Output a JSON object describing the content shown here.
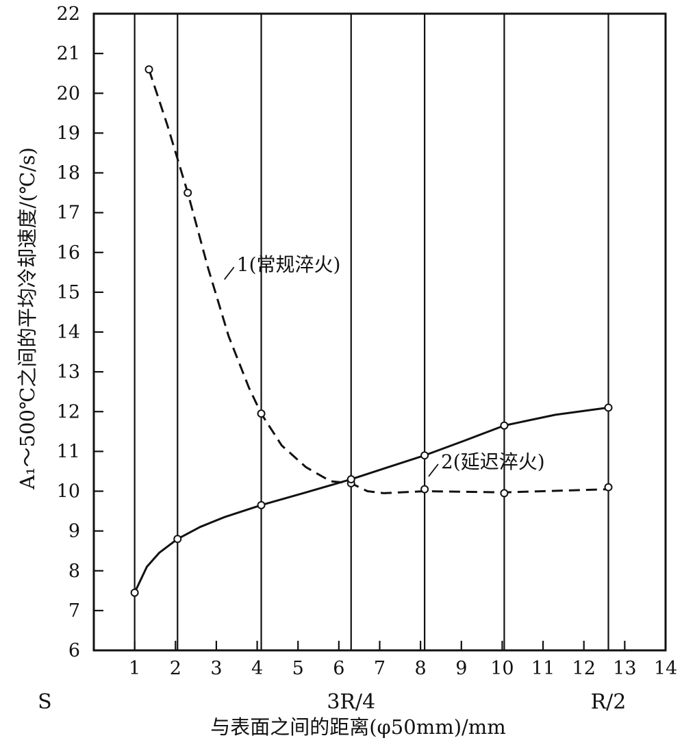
{
  "chart_data": {
    "type": "line",
    "title": "",
    "xlabel": "与表面之间的距离(φ50mm)/mm",
    "ylabel": "A₁～500℃之间的平均冷却速度/(℃/s)",
    "xlim": [
      0,
      14
    ],
    "ylim": [
      6,
      22
    ],
    "x_ticks": [
      1,
      2,
      3,
      4,
      5,
      6,
      7,
      8,
      9,
      10,
      11,
      12,
      13,
      14
    ],
    "y_ticks": [
      6,
      7,
      8,
      9,
      10,
      11,
      12,
      13,
      14,
      15,
      16,
      17,
      18,
      19,
      20,
      21,
      22
    ],
    "extra_x_labels": [
      {
        "text": "S",
        "x": -1.2
      },
      {
        "text": "3R/4",
        "x": 6.3
      },
      {
        "text": "R/2",
        "x": 12.6
      }
    ],
    "vertical_grid_x": [
      1.0,
      2.05,
      4.1,
      6.3,
      8.1,
      10.05,
      12.6
    ],
    "grid": "vertical lines at measurement positions",
    "legend": "inline labels",
    "series": [
      {
        "name": "1(常规淬火)",
        "style": "dashed",
        "label_at": [
          3.5,
          15.7
        ],
        "points": [
          [
            1.35,
            20.6
          ],
          [
            2.3,
            17.5
          ],
          [
            4.1,
            11.95
          ],
          [
            6.3,
            10.2
          ],
          [
            8.1,
            10.05
          ],
          [
            10.05,
            9.95
          ],
          [
            12.6,
            10.1
          ]
        ],
        "curve": [
          [
            1.35,
            20.6
          ],
          [
            1.8,
            19.2
          ],
          [
            2.3,
            17.5
          ],
          [
            2.8,
            15.6
          ],
          [
            3.3,
            13.9
          ],
          [
            3.8,
            12.6
          ],
          [
            4.1,
            11.95
          ],
          [
            4.6,
            11.15
          ],
          [
            5.2,
            10.6
          ],
          [
            5.8,
            10.25
          ],
          [
            6.3,
            10.2
          ],
          [
            6.7,
            10.0
          ],
          [
            7.1,
            9.95
          ],
          [
            8.1,
            10.0
          ],
          [
            10.05,
            9.97
          ],
          [
            12.6,
            10.05
          ]
        ]
      },
      {
        "name": "2(延迟淬火)",
        "style": "solid",
        "label_at": [
          8.5,
          10.75
        ],
        "points": [
          [
            1.0,
            7.45
          ],
          [
            2.05,
            8.8
          ],
          [
            4.1,
            9.65
          ],
          [
            6.3,
            10.3
          ],
          [
            8.1,
            10.9
          ],
          [
            10.05,
            11.65
          ],
          [
            12.6,
            12.1
          ]
        ],
        "curve": [
          [
            1.0,
            7.45
          ],
          [
            1.3,
            8.1
          ],
          [
            1.6,
            8.45
          ],
          [
            2.05,
            8.8
          ],
          [
            2.6,
            9.1
          ],
          [
            3.2,
            9.35
          ],
          [
            4.1,
            9.65
          ],
          [
            5.2,
            9.97
          ],
          [
            6.3,
            10.3
          ],
          [
            7.2,
            10.6
          ],
          [
            8.1,
            10.9
          ],
          [
            9.1,
            11.28
          ],
          [
            10.05,
            11.65
          ],
          [
            11.3,
            11.92
          ],
          [
            12.6,
            12.1
          ]
        ]
      }
    ]
  }
}
